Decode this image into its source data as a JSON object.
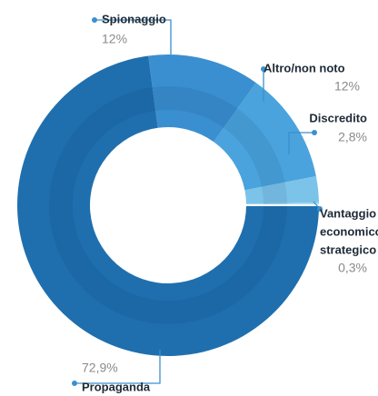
{
  "chart_data": {
    "type": "donut",
    "categories": [
      "Vantaggio economico/strategico",
      "Discredito",
      "Altro/non noto",
      "Spionaggio",
      "Propaganda"
    ],
    "category_lines": [
      [
        "Vantaggio",
        "economico/",
        "strategico"
      ],
      [
        "Discredito"
      ],
      [
        "Altro/non noto"
      ],
      [
        "Spionaggio"
      ],
      [
        "Propaganda"
      ]
    ],
    "values": [
      0.3,
      2.8,
      12,
      12,
      72.9
    ],
    "value_labels": [
      "0,3%",
      "2,8%",
      "12%",
      "12%",
      "72,9%"
    ],
    "colors": [
      "#a9dcf5",
      "#7cc3ea",
      "#4aa3dc",
      "#3a8fd0",
      "#1f6fae"
    ]
  }
}
